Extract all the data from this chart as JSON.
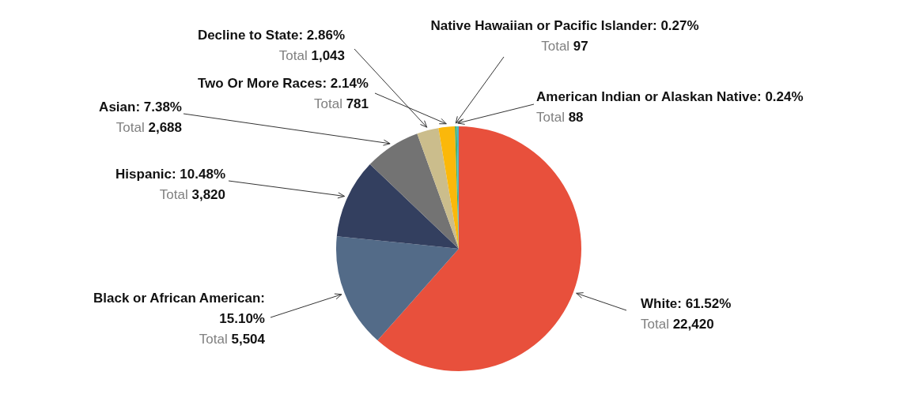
{
  "chart_data": {
    "type": "pie",
    "categories": [
      "White",
      "Black or African American",
      "Hispanic",
      "Asian",
      "Decline to State",
      "Two Or More Races",
      "Native Hawaiian or Pacific Islander",
      "American Indian or Alaskan Native"
    ],
    "values": [
      22420,
      5504,
      3820,
      2688,
      1043,
      781,
      97,
      88
    ],
    "value_labels": [
      ": 61.52%\nTotal 22,420",
      ": 15.10%\nTotal 5,504",
      ": 10.48%\nTotal 3,820",
      ": 7.38%\nTotal 2,688",
      ": 2.86%\nTotal 1,043",
      ": 2.14%\nTotal 781",
      ": 0.27%\nTotal 97",
      ": 0.24%\nTotal 88"
    ],
    "colors": [
      "#e8503c",
      "#536b88",
      "#333f5f",
      "#737373",
      "#cbbd8c",
      "#fbb80a",
      "#4db06a",
      "#3fb8c8"
    ],
    "legend": false
  }
}
